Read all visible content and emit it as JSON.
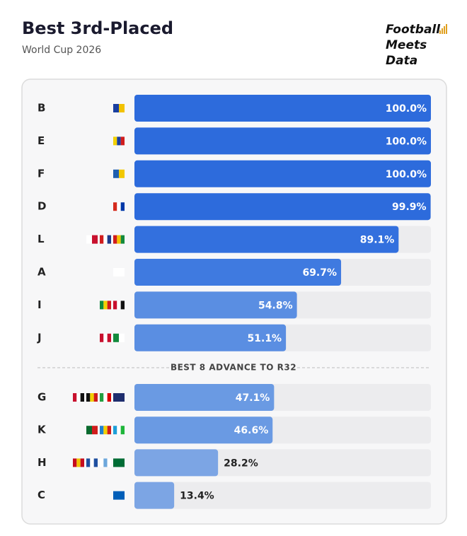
{
  "chart_data": {
    "type": "hbar",
    "title": "Best 3rd-Placed",
    "subtitle": "World Cup 2026",
    "logo": [
      "Football",
      "Meets",
      "Data"
    ],
    "divider_label": "BEST 8 ADVANCE TO R32",
    "categories": [
      "B",
      "E",
      "F",
      "D",
      "L",
      "A",
      "I",
      "J",
      "G",
      "K",
      "H",
      "C"
    ],
    "values": [
      100,
      100,
      100,
      99.9,
      89.1,
      69.7,
      54.8,
      51.1,
      47.1,
      46.6,
      28.2,
      13.4
    ],
    "value_labels": [
      "100.0%",
      "100.0%",
      "100.0%",
      "99.9%",
      "89.1%",
      "69.7%",
      "54.8%",
      "51.1%",
      "47.1%",
      "46.6%",
      "28.2%",
      "13.4%"
    ],
    "colors": [
      "#2d6bdc",
      "#2d6bdc",
      "#2d6bdc",
      "#2d6bdc",
      "#3370de",
      "#3f7ae0",
      "#5a8ee2",
      "#5a8ee2",
      "#6a9ae3",
      "#6a9ae3",
      "#7ca5e4",
      "#7ca5e4"
    ],
    "xlim": [
      0,
      100
    ]
  }
}
